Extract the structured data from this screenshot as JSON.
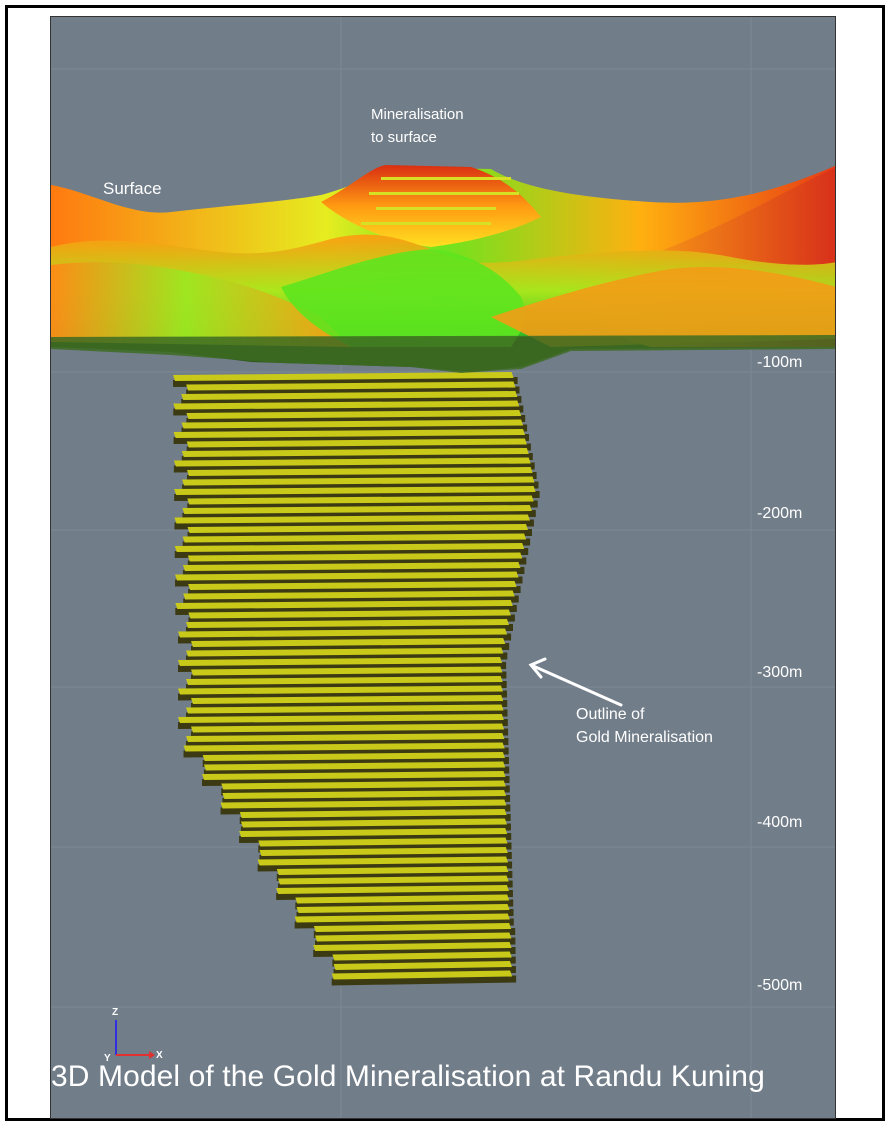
{
  "labels": {
    "surface": "Surface",
    "mineralisation_line1": "Mineralisation",
    "mineralisation_line2": "to surface",
    "outline_line1": "Outline of",
    "outline_line2": "Gold Mineralisation"
  },
  "depth_labels": [
    "-100m",
    "-200m",
    "-300m",
    "-400m",
    "-500m"
  ],
  "axis": {
    "z": "Z",
    "y": "Y",
    "x": "X"
  },
  "caption": "3D Model of the Gold Mineralisation at Randu Kuning",
  "colors": {
    "background": "#717d89",
    "ore_body": "#c9c919",
    "ore_shadow": "#3c3a12",
    "surface_high": "#e03a14",
    "surface_mid": "#f0a010",
    "surface_low": "#66e01c"
  }
}
